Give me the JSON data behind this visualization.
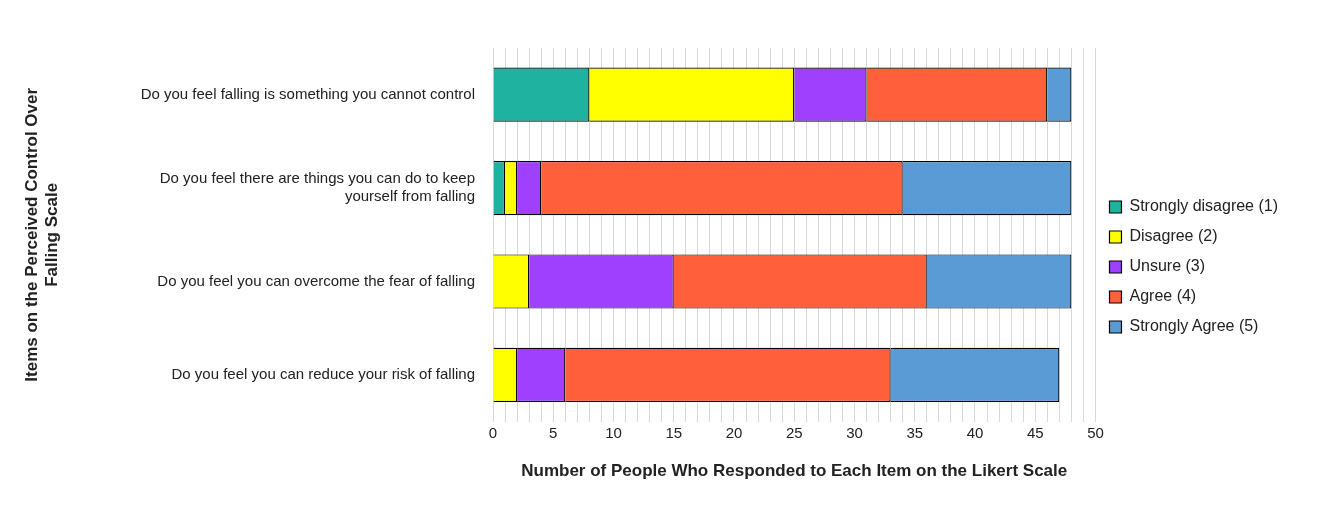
{
  "chart_data": {
    "type": "bar",
    "orientation": "horizontal",
    "stacked": true,
    "xlabel": "Number of People Who Responded to Each Item on the Likert Scale",
    "ylabel": "Items on the Perceived Control Over Falling Scale",
    "categories": [
      "Do you feel falling is something you cannot control",
      "Do you feel there are things you can do to keep yourself from falling",
      "Do you feel you can overcome the fear of falling",
      "Do you feel you can reduce your risk of falling"
    ],
    "series": [
      {
        "name": "Strongly disagree (1)",
        "color": "#20b2a0",
        "values": [
          8,
          1,
          0,
          0
        ]
      },
      {
        "name": "Disagree (2)",
        "color": "#ffff00",
        "values": [
          17,
          1,
          3,
          2
        ]
      },
      {
        "name": "Unsure (3)",
        "color": "#a040ff",
        "values": [
          6,
          2,
          12,
          4
        ]
      },
      {
        "name": "Agree (4)",
        "color": "#ff5f3a",
        "values": [
          15,
          30,
          21,
          27
        ]
      },
      {
        "name": "Strongly Agree (5)",
        "color": "#5b9bd5",
        "values": [
          2,
          14,
          12,
          14
        ]
      }
    ],
    "xlim": [
      0,
      50
    ],
    "xticks": [
      0,
      {
        "value": 1,
        "label": null
      },
      {
        "value": 2,
        "label": null
      },
      {
        "value": 3,
        "label": null
      },
      {
        "value": 4,
        "label": null
      },
      5,
      {
        "value": 6,
        "label": null
      },
      {
        "value": 7,
        "label": null
      },
      {
        "value": 8,
        "label": null
      },
      {
        "value": 9,
        "label": null
      },
      10,
      {
        "value": 11,
        "label": null
      },
      {
        "value": 12,
        "label": null
      },
      {
        "value": 13,
        "label": null
      },
      {
        "value": 14,
        "label": null
      },
      15,
      {
        "value": 16,
        "label": null
      },
      {
        "value": 17,
        "label": null
      },
      {
        "value": 18,
        "label": null
      },
      {
        "value": 19,
        "label": null
      },
      20,
      {
        "value": 21,
        "label": null
      },
      {
        "value": 22,
        "label": null
      },
      {
        "value": 23,
        "label": null
      },
      {
        "value": 24,
        "label": null
      },
      25,
      {
        "value": 26,
        "label": null
      },
      {
        "value": 27,
        "label": null
      },
      {
        "value": 28,
        "label": null
      },
      {
        "value": 29,
        "label": null
      },
      30,
      {
        "value": 31,
        "label": null
      },
      {
        "value": 32,
        "label": null
      },
      {
        "value": 33,
        "label": null
      },
      {
        "value": 34,
        "label": null
      },
      35,
      {
        "value": 36,
        "label": null
      },
      {
        "value": 37,
        "label": null
      },
      {
        "value": 38,
        "label": null
      },
      {
        "value": 39,
        "label": null
      },
      40,
      {
        "value": 41,
        "label": null
      },
      {
        "value": 42,
        "label": null
      },
      {
        "value": 43,
        "label": null
      },
      {
        "value": 44,
        "label": null
      },
      45,
      {
        "value": 46,
        "label": null
      },
      {
        "value": 47,
        "label": null
      },
      {
        "value": 48,
        "label": null
      },
      {
        "value": 49,
        "label": null
      },
      50
    ],
    "grid": "x",
    "legend": "right"
  }
}
